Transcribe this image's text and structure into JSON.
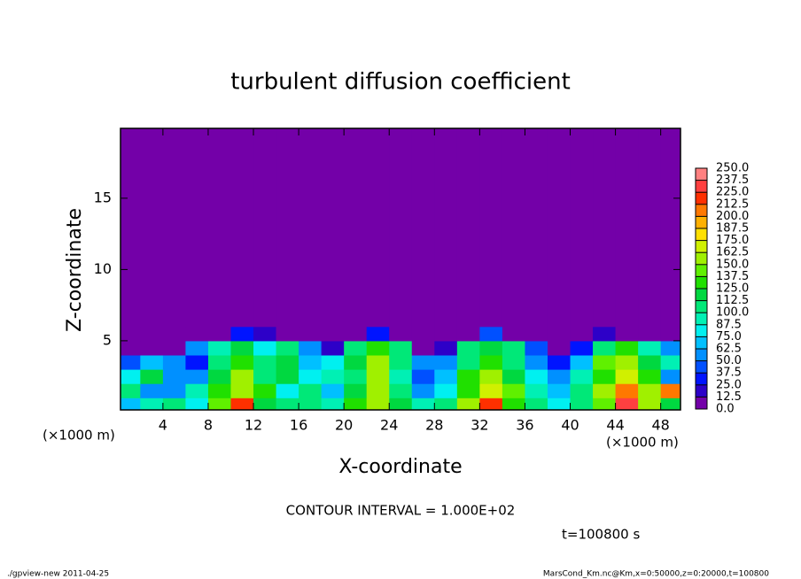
{
  "chart_data": {
    "type": "heatmap",
    "title": "turbulent diffusion coefficient",
    "xlabel": "X-coordinate",
    "ylabel": "Z-coordinate",
    "xunit": "(×1000 m)",
    "yunit": "(×1000 m)",
    "annotation": "CONTOUR INTERVAL = 1.000E+02",
    "time_label": "t=100800 s",
    "footer_left": "./gpview-new   2011-04-25",
    "footer_right": "MarsCond_Km.nc@Km,x=0:50000,z=0:20000,t=100800",
    "xlim": [
      0.25,
      49.75
    ],
    "ylim": [
      0.15,
      19.9
    ],
    "xticks": [
      4,
      8,
      12,
      16,
      20,
      24,
      28,
      32,
      36,
      40,
      44,
      48
    ],
    "yticks": [
      5,
      10,
      15
    ],
    "xbins": [
      0.25,
      2,
      4,
      6,
      8,
      10,
      12,
      14,
      16,
      18,
      20,
      22,
      24,
      26,
      28,
      30,
      32,
      34,
      36,
      38,
      40,
      42,
      44,
      46,
      48,
      49.75
    ],
    "ybins": [
      0.15,
      1,
      2,
      3,
      4,
      5,
      6,
      19.9
    ],
    "values": [
      [
        70,
        90,
        110,
        80,
        140,
        220,
        120,
        100,
        110,
        90,
        130,
        160,
        120,
        90,
        110,
        150,
        220,
        130,
        100,
        80,
        110,
        140,
        230,
        150,
        120
      ],
      [
        110,
        60,
        50,
        90,
        130,
        160,
        130,
        80,
        100,
        70,
        120,
        150,
        110,
        60,
        80,
        130,
        170,
        140,
        90,
        70,
        100,
        150,
        200,
        160,
        210
      ],
      [
        80,
        120,
        50,
        60,
        120,
        150,
        110,
        120,
        80,
        90,
        110,
        160,
        90,
        40,
        70,
        130,
        150,
        120,
        80,
        60,
        90,
        130,
        170,
        130,
        60
      ],
      [
        40,
        70,
        60,
        30,
        100,
        130,
        100,
        120,
        70,
        80,
        120,
        150,
        110,
        50,
        60,
        110,
        130,
        110,
        50,
        30,
        70,
        140,
        160,
        120,
        90
      ],
      [
        0,
        10,
        0,
        60,
        90,
        120,
        80,
        100,
        50,
        20,
        110,
        130,
        100,
        0,
        20,
        100,
        120,
        100,
        40,
        0,
        30,
        110,
        130,
        90,
        60
      ],
      [
        0,
        0,
        0,
        0,
        0,
        30,
        20,
        0,
        0,
        0,
        0,
        30,
        0,
        0,
        0,
        0,
        40,
        0,
        0,
        0,
        0,
        20,
        0,
        0,
        0
      ],
      [
        0,
        0,
        0,
        0,
        0,
        0,
        0,
        0,
        0,
        0,
        0,
        0,
        0,
        0,
        0,
        0,
        0,
        0,
        0,
        0,
        0,
        0,
        0,
        0,
        0
      ]
    ],
    "levels": [
      {
        "value": 0,
        "label": "0.0"
      },
      {
        "value": 12.5,
        "label": "12.5"
      },
      {
        "value": 25,
        "label": "25.0"
      },
      {
        "value": 37.5,
        "label": "37.5"
      },
      {
        "value": 50,
        "label": "50.0"
      },
      {
        "value": 62.5,
        "label": "62.5"
      },
      {
        "value": 75,
        "label": "75.0"
      },
      {
        "value": 87.5,
        "label": "87.5"
      },
      {
        "value": 100,
        "label": "100.0"
      },
      {
        "value": 112.5,
        "label": "112.5"
      },
      {
        "value": 125,
        "label": "125.0"
      },
      {
        "value": 137.5,
        "label": "137.5"
      },
      {
        "value": 150,
        "label": "150.0"
      },
      {
        "value": 162.5,
        "label": "162.5"
      },
      {
        "value": 175,
        "label": "175.0"
      },
      {
        "value": 187.5,
        "label": "187.5"
      },
      {
        "value": 200,
        "label": "200.0"
      },
      {
        "value": 212.5,
        "label": "212.5"
      },
      {
        "value": 225,
        "label": "225.0"
      },
      {
        "value": 237.5,
        "label": "237.5"
      },
      {
        "value": 250,
        "label": "250.0"
      }
    ],
    "colors": [
      "#7300a8",
      "#2d00c8",
      "#0014ff",
      "#0050ff",
      "#0090ff",
      "#00c0ff",
      "#00f0f0",
      "#00f0b4",
      "#00e878",
      "#00d840",
      "#20e000",
      "#60f000",
      "#a0f000",
      "#d0f000",
      "#ffe000",
      "#ffb000",
      "#ff7800",
      "#ff3000",
      "#ff4040",
      "#ff8080"
    ]
  }
}
